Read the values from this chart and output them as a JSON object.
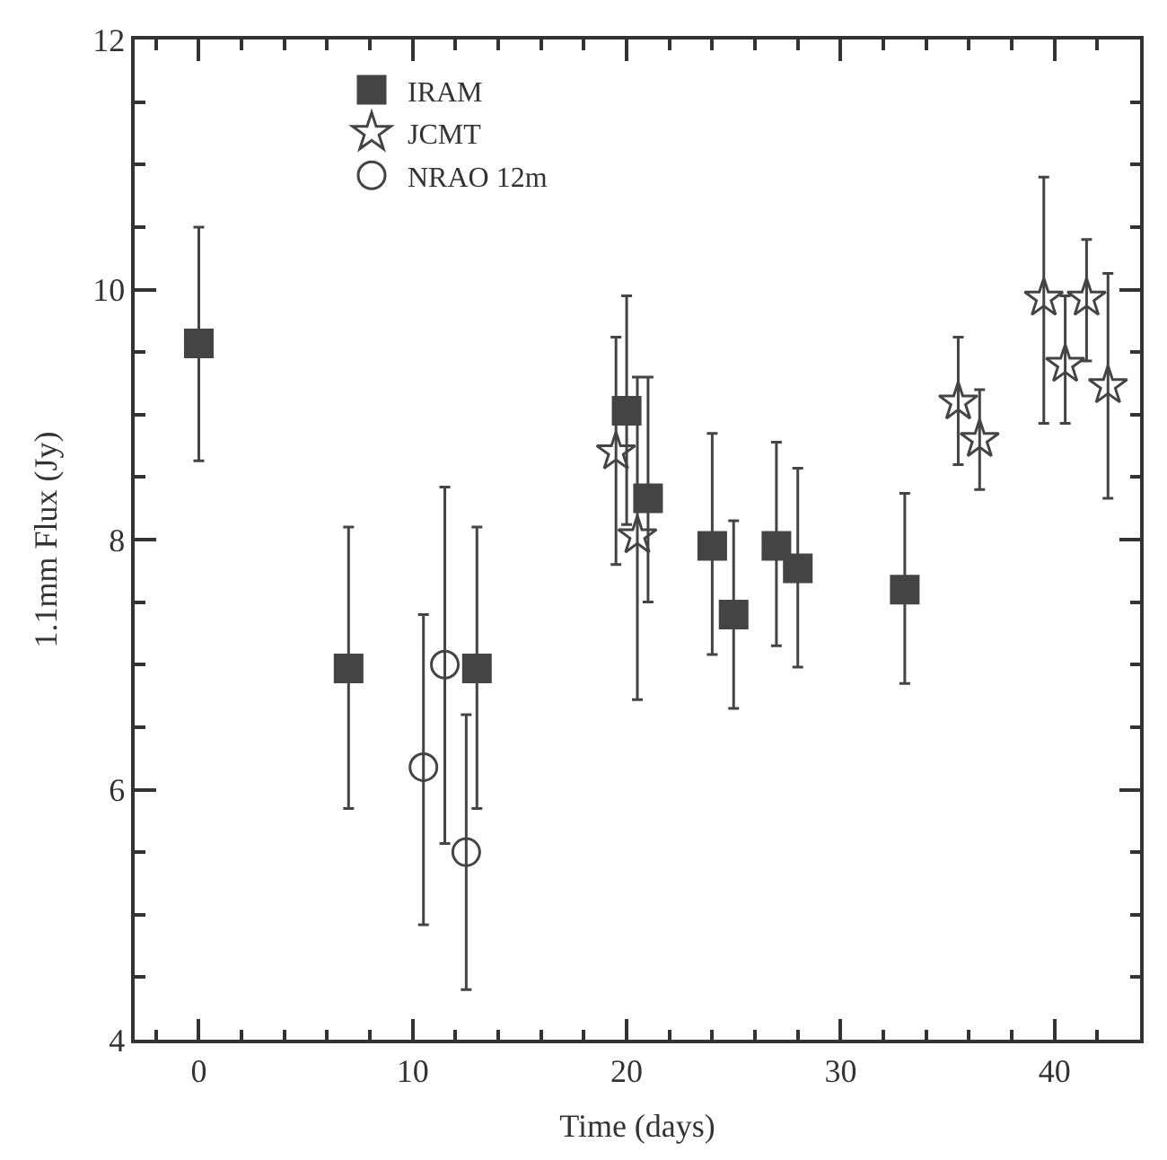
{
  "chart_data": {
    "type": "scatter",
    "xlabel": "Time (days)",
    "ylabel": "1.1mm Flux (Jy)",
    "xlim": [
      -3,
      44
    ],
    "ylim": [
      4,
      12
    ],
    "xticks": [
      0,
      10,
      20,
      30,
      40,
      {
        "value": -2,
        "label": null
      },
      {
        "value": 2,
        "label": null
      },
      {
        "value": 4,
        "label": null
      },
      {
        "value": 6,
        "label": null
      },
      {
        "value": 8,
        "label": null
      },
      {
        "value": 12,
        "label": null
      },
      {
        "value": 14,
        "label": null
      },
      {
        "value": 16,
        "label": null
      },
      {
        "value": 18,
        "label": null
      },
      {
        "value": 22,
        "label": null
      },
      {
        "value": 24,
        "label": null
      },
      {
        "value": 26,
        "label": null
      },
      {
        "value": 28,
        "label": null
      },
      {
        "value": 32,
        "label": null
      },
      {
        "value": 34,
        "label": null
      },
      {
        "value": 36,
        "label": null
      },
      {
        "value": 38,
        "label": null
      },
      {
        "value": 42,
        "label": null
      }
    ],
    "yticks": [
      4,
      6,
      8,
      10,
      12,
      {
        "value": 4.5,
        "label": null
      },
      {
        "value": 5,
        "label": null
      },
      {
        "value": 5.5,
        "label": null
      },
      {
        "value": 6.5,
        "label": null
      },
      {
        "value": 7,
        "label": null
      },
      {
        "value": 7.5,
        "label": null
      },
      {
        "value": 8.5,
        "label": null
      },
      {
        "value": 9,
        "label": null
      },
      {
        "value": 9.5,
        "label": null
      },
      {
        "value": 10.5,
        "label": null
      },
      {
        "value": 11,
        "label": null
      },
      {
        "value": 11.5,
        "label": null
      }
    ],
    "legend": "top left",
    "series": [
      {
        "name": "IRAM",
        "color": "#444444",
        "marker": "square",
        "x": [
          0,
          7,
          13,
          20,
          21,
          24,
          25,
          27,
          28,
          33
        ],
        "values": [
          9.57,
          6.97,
          6.97,
          9.03,
          8.33,
          7.95,
          7.4,
          7.95,
          7.77,
          7.6
        ],
        "errors": [
          [
            8.63,
            10.5
          ],
          [
            5.85,
            8.1
          ],
          [
            5.85,
            8.1
          ],
          [
            8.12,
            9.95
          ],
          [
            7.5,
            9.3
          ],
          [
            7.08,
            8.85
          ],
          [
            6.65,
            8.15
          ],
          [
            7.15,
            8.78
          ],
          [
            6.98,
            8.57
          ],
          [
            6.85,
            8.37
          ]
        ]
      },
      {
        "name": "JCMT",
        "color": "#444444",
        "marker": "star",
        "x": [
          19.5,
          20.5,
          35.5,
          36.5,
          39.5,
          40.5,
          41.5,
          42.5
        ],
        "values": [
          8.7,
          8.03,
          9.1,
          8.8,
          9.93,
          9.4,
          9.93,
          9.23
        ],
        "errors": [
          [
            7.8,
            9.62
          ],
          [
            6.72,
            9.3
          ],
          [
            8.6,
            9.62
          ],
          [
            8.4,
            9.2
          ],
          [
            8.93,
            10.9
          ],
          [
            8.93,
            9.95
          ],
          [
            9.43,
            10.4
          ],
          [
            8.33,
            10.13
          ]
        ]
      },
      {
        "name": "NRAO 12m",
        "color": "#444444",
        "marker": "circle",
        "x": [
          10.5,
          11.5,
          12.5
        ],
        "values": [
          6.18,
          7.0,
          5.5
        ],
        "errors": [
          [
            4.92,
            7.4
          ],
          [
            5.57,
            8.42
          ],
          [
            4.4,
            6.6
          ]
        ]
      }
    ]
  }
}
